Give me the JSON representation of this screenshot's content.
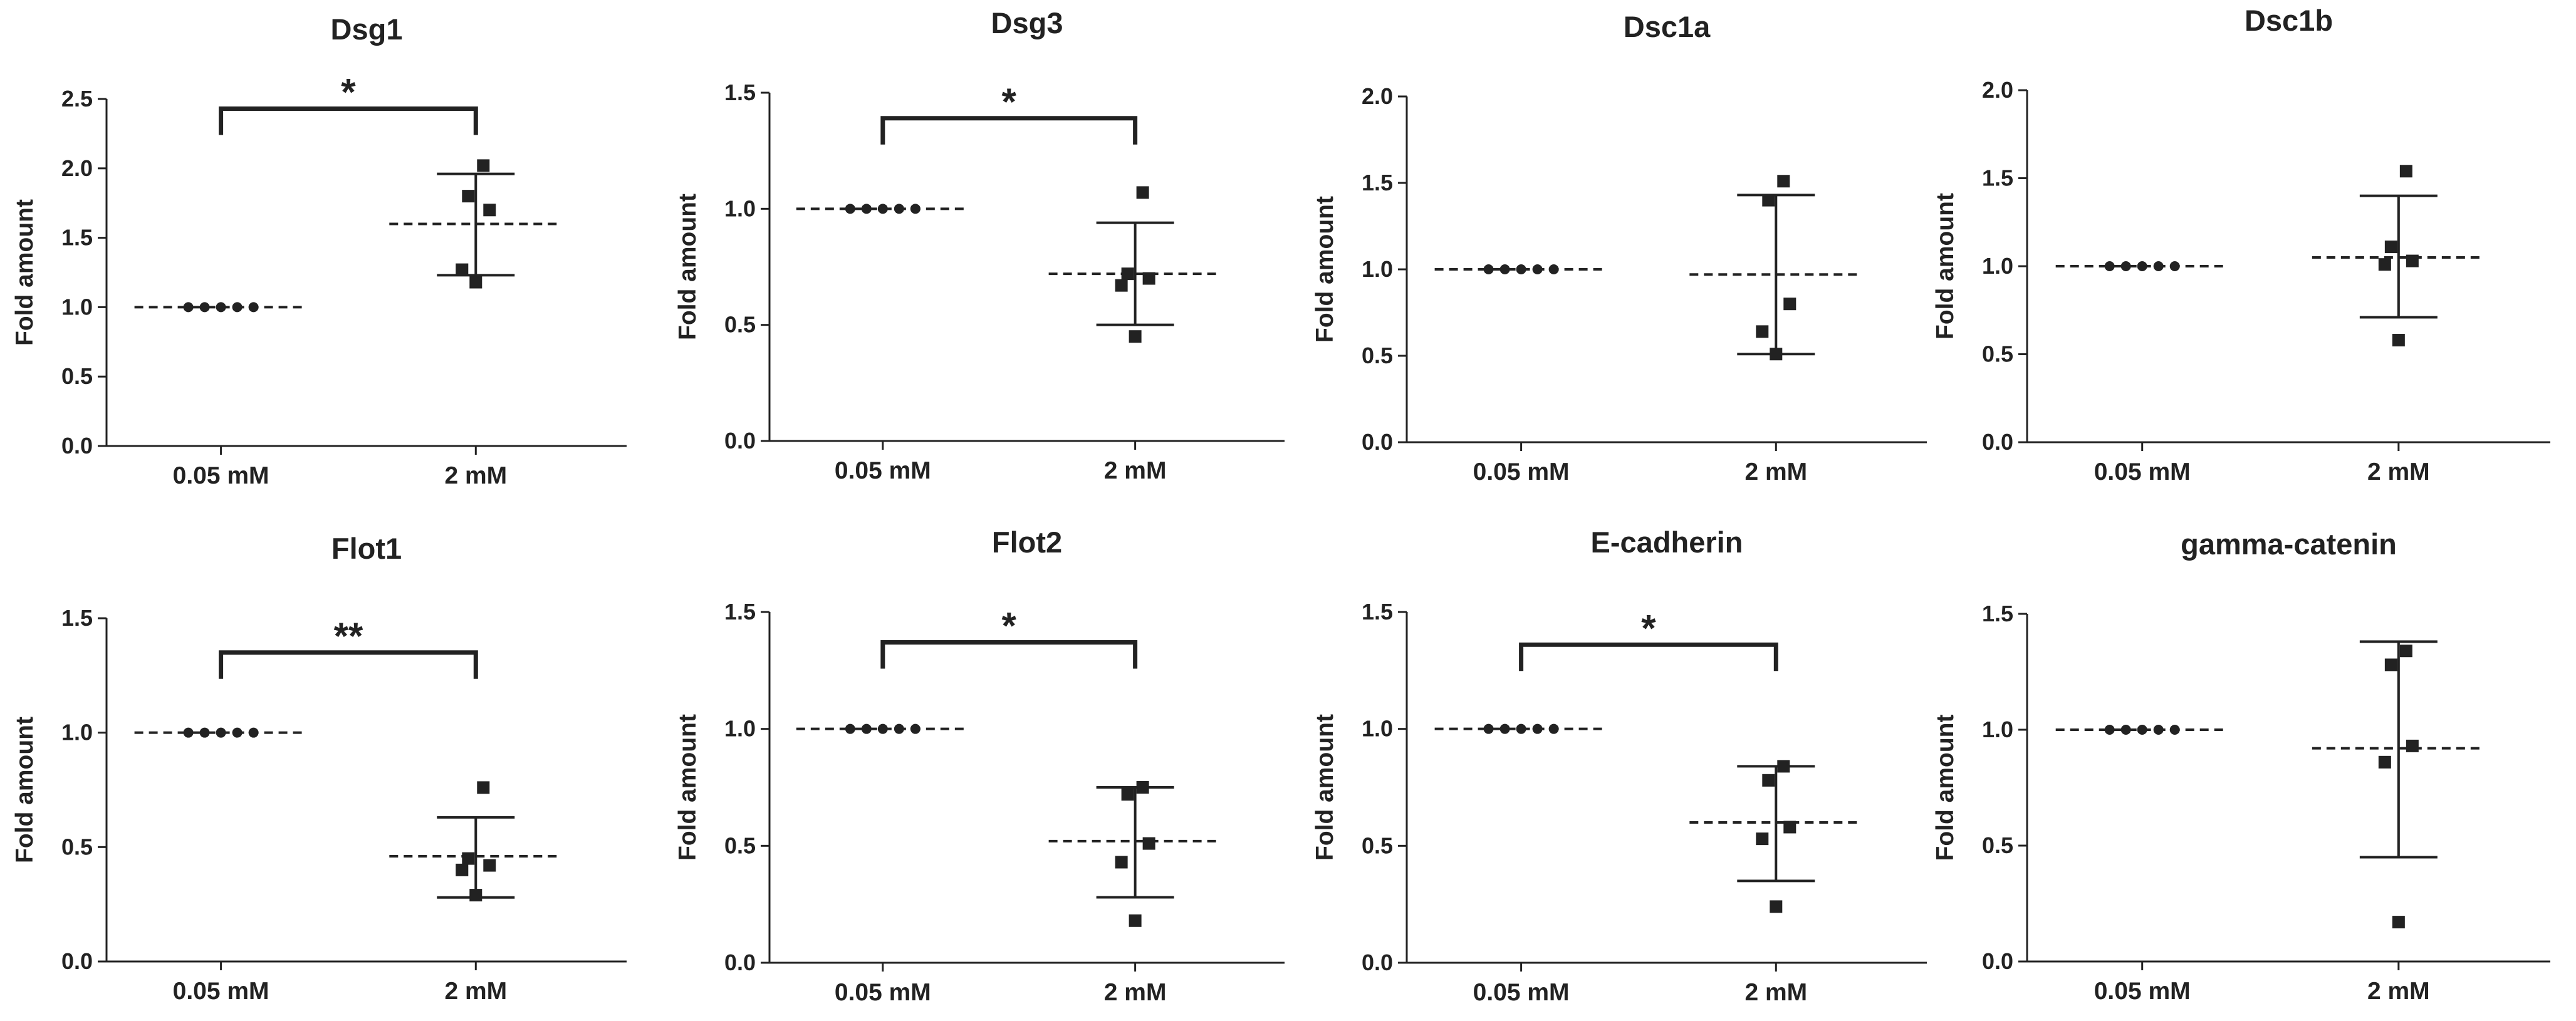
{
  "chart_data": [
    {
      "type": "scatter",
      "title": "Dsg1",
      "xlabel": "",
      "ylabel": "Fold amount",
      "categories": [
        "0.05 mM",
        "2 mM"
      ],
      "ylim": [
        0,
        2.5
      ],
      "yticks": [
        "0.0",
        "0.5",
        "1.0",
        "1.5",
        "2.0",
        "2.5"
      ],
      "series": [
        {
          "name": "0.05 mM",
          "values": [
            1.0,
            1.0,
            1.0,
            1.0,
            1.0
          ],
          "mean": 1.0,
          "sd_low": 1.0,
          "sd_high": 1.0
        },
        {
          "name": "2 mM",
          "values": [
            2.02,
            1.8,
            1.7,
            1.27,
            1.18
          ],
          "mean": 1.6,
          "sd_low": 1.23,
          "sd_high": 1.96
        }
      ],
      "significance": {
        "label": "*",
        "bracket_y": 2.43
      }
    },
    {
      "type": "scatter",
      "title": "Dsg3",
      "xlabel": "",
      "ylabel": "Fold amount",
      "categories": [
        "0.05 mM",
        "2 mM"
      ],
      "ylim": [
        0,
        1.5
      ],
      "yticks": [
        "0.0",
        "0.5",
        "1.0",
        "1.5"
      ],
      "series": [
        {
          "name": "0.05 mM",
          "values": [
            1.0,
            1.0,
            1.0,
            1.0,
            1.0
          ],
          "mean": 1.0,
          "sd_low": 1.0,
          "sd_high": 1.0
        },
        {
          "name": "2 mM",
          "values": [
            1.07,
            0.72,
            0.7,
            0.67,
            0.45
          ],
          "mean": 0.72,
          "sd_low": 0.5,
          "sd_high": 0.94
        }
      ],
      "significance": {
        "label": "*",
        "bracket_y": 1.39
      }
    },
    {
      "type": "scatter",
      "title": "Dsc1a",
      "xlabel": "",
      "ylabel": "Fold amount",
      "categories": [
        "0.05 mM",
        "2 mM"
      ],
      "ylim": [
        0,
        2.0
      ],
      "yticks": [
        "0.0",
        "0.5",
        "1.0",
        "1.5",
        "2.0"
      ],
      "series": [
        {
          "name": "0.05 mM",
          "values": [
            1.0,
            1.0,
            1.0,
            1.0,
            1.0
          ],
          "mean": 1.0,
          "sd_low": 1.0,
          "sd_high": 1.0
        },
        {
          "name": "2 mM",
          "values": [
            1.51,
            1.4,
            0.8,
            0.64,
            0.51
          ],
          "mean": 0.97,
          "sd_low": 0.51,
          "sd_high": 1.43
        }
      ],
      "significance": null
    },
    {
      "type": "scatter",
      "title": "Dsc1b",
      "xlabel": "",
      "ylabel": "Fold amount",
      "categories": [
        "0.05 mM",
        "2 mM"
      ],
      "ylim": [
        0,
        2.0
      ],
      "yticks": [
        "0.0",
        "0.5",
        "1.0",
        "1.5",
        "2.0"
      ],
      "series": [
        {
          "name": "0.05 mM",
          "values": [
            1.0,
            1.0,
            1.0,
            1.0,
            1.0
          ],
          "mean": 1.0,
          "sd_low": 1.0,
          "sd_high": 1.0
        },
        {
          "name": "2 mM",
          "values": [
            1.54,
            1.11,
            1.03,
            1.01,
            0.58
          ],
          "mean": 1.05,
          "sd_low": 0.71,
          "sd_high": 1.4
        }
      ],
      "significance": null
    },
    {
      "type": "scatter",
      "title": "Flot1",
      "xlabel": "",
      "ylabel": "Fold amount",
      "categories": [
        "0.05 mM",
        "2 mM"
      ],
      "ylim": [
        0,
        1.5
      ],
      "yticks": [
        "0.0",
        "0.5",
        "1.0",
        "1.5"
      ],
      "series": [
        {
          "name": "0.05 mM",
          "values": [
            1.0,
            1.0,
            1.0,
            1.0,
            1.0
          ],
          "mean": 1.0,
          "sd_low": 1.0,
          "sd_high": 1.0
        },
        {
          "name": "2 mM",
          "values": [
            0.76,
            0.45,
            0.42,
            0.4,
            0.29
          ],
          "mean": 0.46,
          "sd_low": 0.28,
          "sd_high": 0.63
        }
      ],
      "significance": {
        "label": "**",
        "bracket_y": 1.35
      }
    },
    {
      "type": "scatter",
      "title": "Flot2",
      "xlabel": "",
      "ylabel": "Fold amount",
      "categories": [
        "0.05 mM",
        "2 mM"
      ],
      "ylim": [
        0,
        1.5
      ],
      "yticks": [
        "0.0",
        "0.5",
        "1.0",
        "1.5"
      ],
      "series": [
        {
          "name": "0.05 mM",
          "values": [
            1.0,
            1.0,
            1.0,
            1.0,
            1.0
          ],
          "mean": 1.0,
          "sd_low": 1.0,
          "sd_high": 1.0
        },
        {
          "name": "2 mM",
          "values": [
            0.75,
            0.72,
            0.51,
            0.43,
            0.18
          ],
          "mean": 0.52,
          "sd_low": 0.28,
          "sd_high": 0.75
        }
      ],
      "significance": {
        "label": "*",
        "bracket_y": 1.37
      }
    },
    {
      "type": "scatter",
      "title": "E-cadherin",
      "xlabel": "",
      "ylabel": "Fold amount",
      "categories": [
        "0.05 mM",
        "2 mM"
      ],
      "ylim": [
        0,
        1.5
      ],
      "yticks": [
        "0.0",
        "0.5",
        "1.0",
        "1.5"
      ],
      "series": [
        {
          "name": "0.05 mM",
          "values": [
            1.0,
            1.0,
            1.0,
            1.0,
            1.0
          ],
          "mean": 1.0,
          "sd_low": 1.0,
          "sd_high": 1.0
        },
        {
          "name": "2 mM",
          "values": [
            0.84,
            0.78,
            0.58,
            0.53,
            0.24
          ],
          "mean": 0.6,
          "sd_low": 0.35,
          "sd_high": 0.84
        }
      ],
      "significance": {
        "label": "*",
        "bracket_y": 1.36
      }
    },
    {
      "type": "scatter",
      "title": "gamma-catenin",
      "xlabel": "",
      "ylabel": "Fold amount",
      "categories": [
        "0.05 mM",
        "2 mM"
      ],
      "ylim": [
        0,
        1.5
      ],
      "yticks": [
        "0.0",
        "0.5",
        "1.0",
        "1.5"
      ],
      "series": [
        {
          "name": "0.05 mM",
          "values": [
            1.0,
            1.0,
            1.0,
            1.0,
            1.0
          ],
          "mean": 1.0,
          "sd_low": 1.0,
          "sd_high": 1.0
        },
        {
          "name": "2 mM",
          "values": [
            1.34,
            1.28,
            0.93,
            0.86,
            0.17
          ],
          "mean": 0.92,
          "sd_low": 0.45,
          "sd_high": 1.38
        }
      ],
      "significance": null
    }
  ]
}
